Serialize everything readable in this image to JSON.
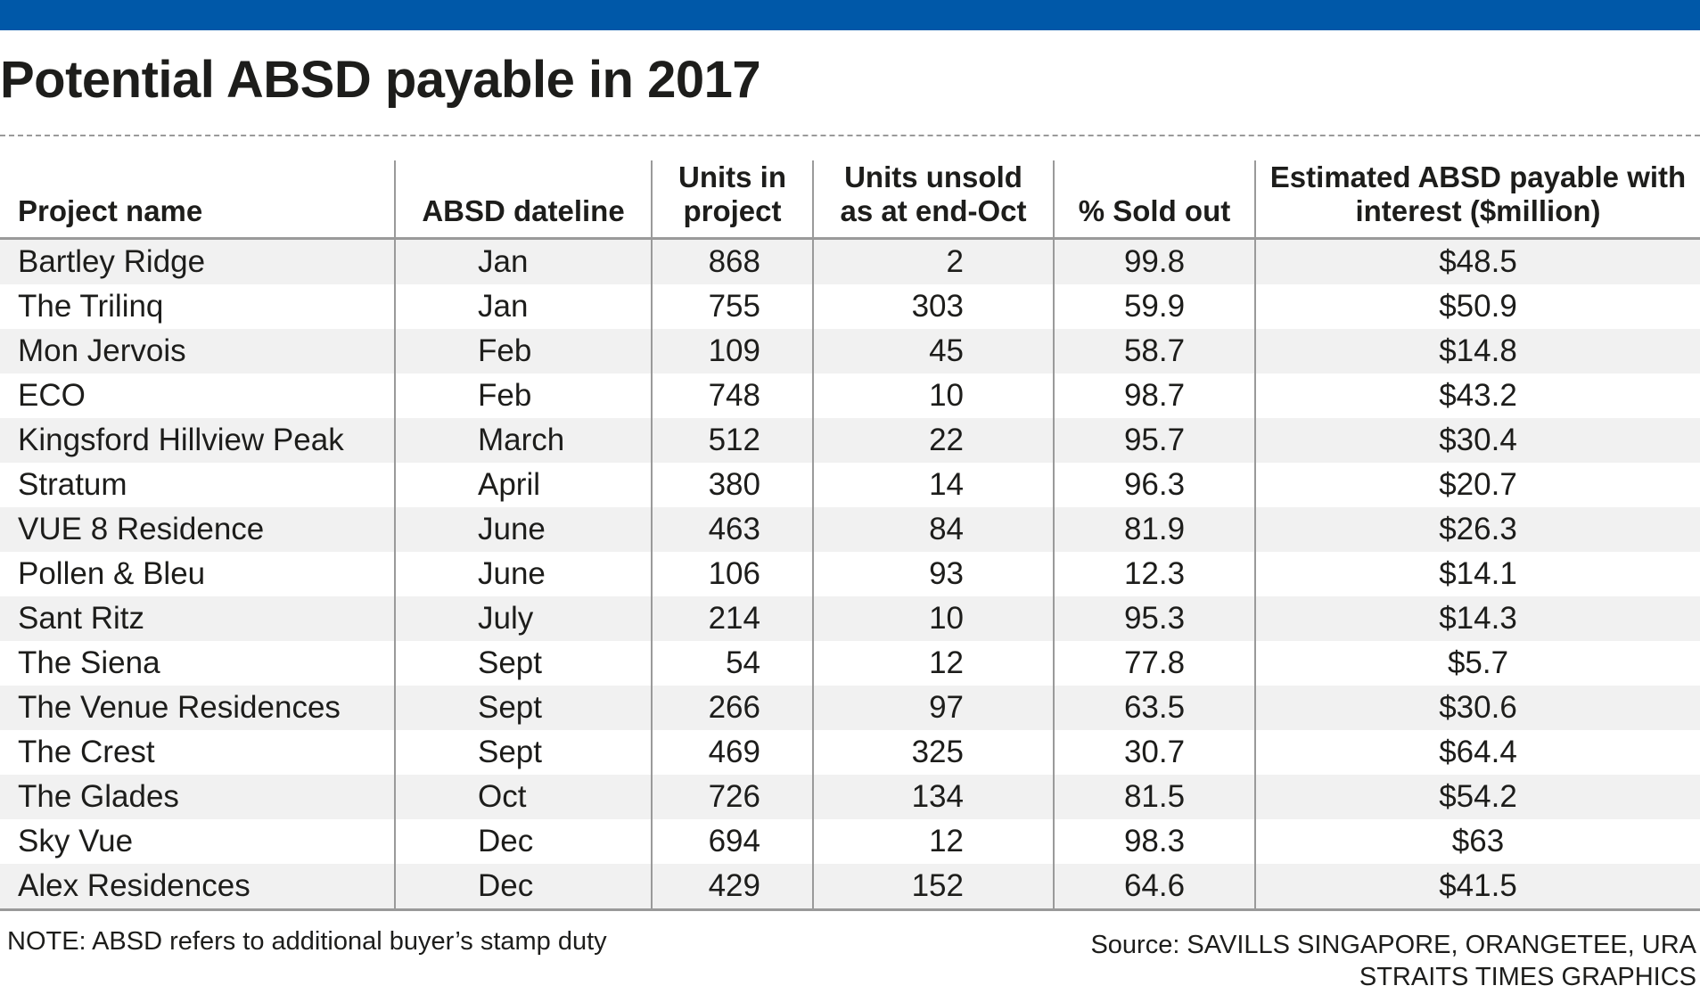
{
  "header": {
    "title": "Potential ABSD payable in 2017",
    "accent_color": "#0058a8"
  },
  "chart_data": {
    "type": "table",
    "title": "Potential ABSD payable in 2017",
    "columns": [
      "Project name",
      "ABSD dateline",
      "Units in project",
      "Units unsold as at end-Oct",
      "% Sold out",
      "Estimated ABSD payable with interest ($million)"
    ],
    "header_lines": [
      [
        "Project name"
      ],
      [
        "ABSD dateline"
      ],
      [
        "Units in",
        "project"
      ],
      [
        "Units unsold",
        "as at end-Oct"
      ],
      [
        "% Sold out"
      ],
      [
        "Estimated ABSD payable with",
        "interest ($million)"
      ]
    ],
    "rows": [
      [
        "Bartley Ridge",
        "Jan",
        "868",
        "2",
        "99.8",
        "$48.5"
      ],
      [
        "The Trilinq",
        "Jan",
        "755",
        "303",
        "59.9",
        "$50.9"
      ],
      [
        "Mon Jervois",
        "Feb",
        "109",
        "45",
        "58.7",
        "$14.8"
      ],
      [
        "ECO",
        "Feb",
        "748",
        "10",
        "98.7",
        "$43.2"
      ],
      [
        "Kingsford Hillview Peak",
        "March",
        "512",
        "22",
        "95.7",
        "$30.4"
      ],
      [
        "Stratum",
        "April",
        "380",
        "14",
        "96.3",
        "$20.7"
      ],
      [
        "VUE 8 Residence",
        "June",
        "463",
        "84",
        "81.9",
        "$26.3"
      ],
      [
        "Pollen & Bleu",
        "June",
        "106",
        "93",
        "12.3",
        "$14.1"
      ],
      [
        "Sant Ritz",
        "July",
        "214",
        "10",
        "95.3",
        "$14.3"
      ],
      [
        "The Siena",
        "Sept",
        "54",
        "12",
        "77.8",
        "$5.7"
      ],
      [
        "The Venue Residences",
        "Sept",
        "266",
        "97",
        "63.5",
        "$30.6"
      ],
      [
        "The Crest",
        "Sept",
        "469",
        "325",
        "30.7",
        "$64.4"
      ],
      [
        "The Glades",
        "Oct",
        "726",
        "134",
        "81.5",
        "$54.2"
      ],
      [
        "Sky Vue",
        "Dec",
        "694",
        "12",
        "98.3",
        "$63"
      ],
      [
        "Alex Residences",
        "Dec",
        "429",
        "152",
        "64.6",
        "$41.5"
      ]
    ]
  },
  "footer": {
    "note": "NOTE: ABSD refers to additional buyer’s stamp duty",
    "source_line1": "Source: SAVILLS SINGAPORE, ORANGETEE, URA",
    "source_line2": "STRAITS TIMES GRAPHICS"
  }
}
